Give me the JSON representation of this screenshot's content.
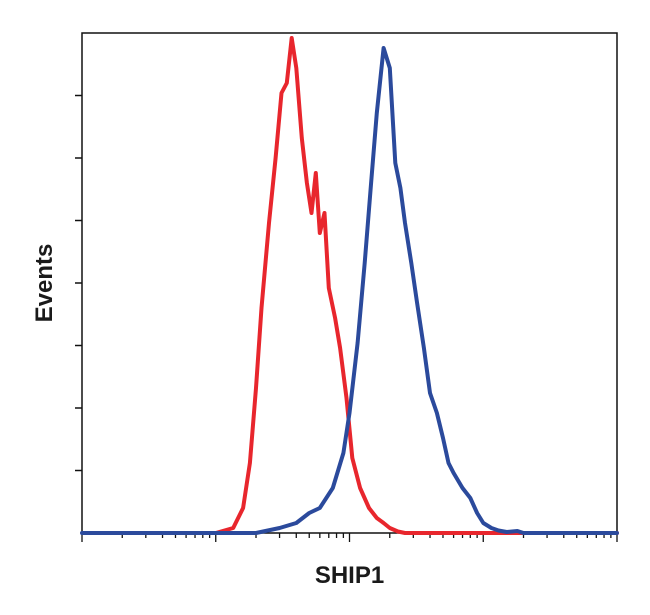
{
  "chart_data": {
    "type": "line",
    "title": "",
    "xlabel": "SHIP1",
    "ylabel": "Events",
    "x_scale": "log",
    "xlim": [
      0.01,
      100
    ],
    "ylim": [
      0,
      1.0
    ],
    "grid": false,
    "legend": "none",
    "series": [
      {
        "color": "#e8262d",
        "x": [
          0.1,
          0.135,
          0.16,
          0.18,
          0.2,
          0.22,
          0.25,
          0.28,
          0.31,
          0.34,
          0.37,
          0.4,
          0.44,
          0.48,
          0.52,
          0.56,
          0.6,
          0.65,
          0.7,
          0.78,
          0.85,
          0.95,
          1.05,
          1.2,
          1.4,
          1.6,
          1.8,
          2.0,
          2.3,
          2.6,
          3.0,
          4.0,
          6.0,
          10.0,
          20.0,
          50.0,
          100.0
        ],
        "y": [
          0.0,
          0.01,
          0.05,
          0.14,
          0.29,
          0.45,
          0.62,
          0.75,
          0.88,
          0.9,
          0.99,
          0.93,
          0.79,
          0.7,
          0.64,
          0.72,
          0.6,
          0.64,
          0.49,
          0.43,
          0.37,
          0.27,
          0.15,
          0.09,
          0.05,
          0.03,
          0.02,
          0.01,
          0.003,
          0.0,
          0.0,
          0.0,
          0.0,
          0.0,
          0.0,
          0.0,
          0.0
        ]
      },
      {
        "color": "#2b4a9c",
        "x": [
          0.01,
          0.1,
          0.2,
          0.3,
          0.4,
          0.5,
          0.6,
          0.75,
          0.9,
          1.0,
          1.15,
          1.3,
          1.45,
          1.6,
          1.8,
          2.0,
          2.2,
          2.4,
          2.6,
          2.9,
          3.2,
          3.6,
          4.0,
          4.5,
          5.0,
          5.5,
          6.0,
          7.0,
          8.0,
          9.0,
          10.0,
          11.5,
          13.0,
          15.0,
          18.0,
          20.0,
          25.0,
          30.0,
          100.0
        ],
        "y": [
          0.0,
          0.0,
          0.0,
          0.01,
          0.02,
          0.04,
          0.05,
          0.09,
          0.16,
          0.24,
          0.38,
          0.54,
          0.7,
          0.84,
          0.97,
          0.93,
          0.74,
          0.69,
          0.62,
          0.54,
          0.46,
          0.37,
          0.28,
          0.24,
          0.19,
          0.14,
          0.12,
          0.09,
          0.07,
          0.04,
          0.02,
          0.01,
          0.005,
          0.002,
          0.004,
          0.0,
          0.0,
          0.0,
          0.0
        ]
      }
    ]
  }
}
